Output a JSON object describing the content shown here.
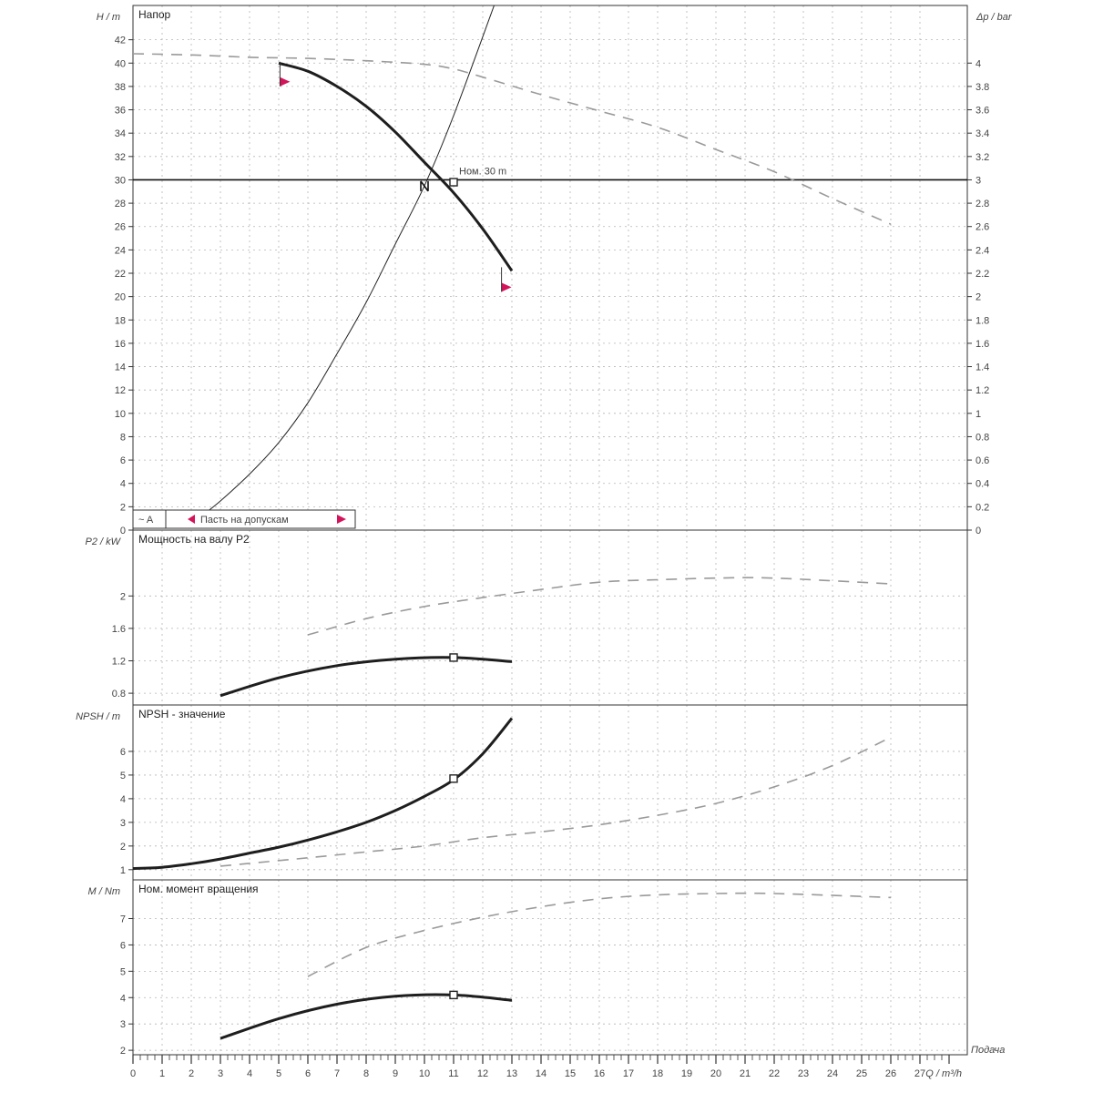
{
  "chart_data": {
    "type": "line",
    "x": {
      "label": "Q / m³/h",
      "corner_label": "Подача",
      "range": [
        0,
        28
      ],
      "tick_labels": [
        "0",
        "1",
        "2",
        "3",
        "4",
        "5",
        "6",
        "7",
        "8",
        "9",
        "10",
        "11",
        "12",
        "13",
        "14",
        "15",
        "16",
        "17",
        "18",
        "19",
        "20",
        "21",
        "22",
        "23",
        "24",
        "25",
        "26",
        "27"
      ]
    },
    "panels": [
      {
        "id": "head",
        "title": "Напор",
        "ylabel": "H / m",
        "ylim": [
          0,
          44
        ],
        "y_ticks": [
          0,
          2,
          4,
          6,
          8,
          10,
          12,
          14,
          16,
          18,
          20,
          22,
          24,
          26,
          28,
          30,
          32,
          34,
          36,
          38,
          40,
          42
        ],
        "secondary_axis": {
          "label": "Δp / bar",
          "ylim": [
            0,
            4.4
          ],
          "ticks": [
            "0",
            "0.2",
            "0.4",
            "0.6",
            "0.8",
            "1",
            "1.2",
            "1.4",
            "1.6",
            "1.8",
            "2",
            "2.2",
            "2.4",
            "2.6",
            "2.8",
            "3",
            "3.2",
            "3.4",
            "3.6",
            "3.8",
            "4"
          ]
        },
        "duty_line_y": 30,
        "duty_label": "Ном. 30 m",
        "series": [
          {
            "style": "solid-thick",
            "x": [
              5,
              6,
              7,
              8,
              9,
              10,
              11,
              12,
              13
            ],
            "y": [
              40,
              39.3,
              38,
              36.3,
              34.1,
              31.5,
              28.9,
              25.8,
              22.2
            ]
          },
          {
            "style": "dashed",
            "x": [
              0,
              2,
              4,
              6,
              8,
              10,
              11,
              12,
              14,
              16,
              18,
              20,
              22,
              24,
              26
            ],
            "y": [
              40.8,
              40.7,
              40.5,
              40.4,
              40.2,
              39.9,
              39.5,
              38.8,
              37.3,
              35.9,
              34.5,
              32.6,
              30.7,
              28.4,
              26.2
            ]
          },
          {
            "style": "system-curve",
            "x": [
              2.4,
              3,
              4,
              5,
              6,
              7,
              8,
              9,
              10,
              11,
              12.4
            ],
            "y": [
              1.3,
              2.5,
              4.8,
              7.5,
              10.9,
              15.1,
              19.5,
              24.5,
              29.5,
              35.5,
              45
            ]
          }
        ],
        "markers": [
          {
            "x": 10,
            "y": 29.5,
            "kind": "intersection"
          },
          {
            "x": 11,
            "y": 29.8,
            "kind": "duty-point"
          }
        ],
        "tolerance_flags": [
          {
            "x": 5.2,
            "y": 38.4
          },
          {
            "x": 12.8,
            "y": 20.8
          }
        ],
        "legend": {
          "placement": "bottom-left",
          "items": [
            "~ A",
            "Пасть на допускам"
          ]
        }
      },
      {
        "id": "power",
        "title": "Мощность на валу P2",
        "ylabel": "P2 / kW",
        "ylim": [
          0.7,
          2.7
        ],
        "y_ticks": [
          0.8,
          1.2,
          1.6,
          2
        ],
        "y_tick_labels": [
          "0.8",
          "1.2",
          "1.6",
          "2"
        ],
        "series": [
          {
            "style": "solid-thick",
            "x": [
              3,
              5,
              7,
              9,
              11,
              13
            ],
            "y": [
              0.77,
              0.99,
              1.14,
              1.22,
              1.24,
              1.19
            ]
          },
          {
            "style": "dashed",
            "x": [
              6,
              8,
              10,
              12,
              14,
              16,
              18,
              20,
              22,
              26
            ],
            "y": [
              1.52,
              1.72,
              1.87,
              1.98,
              2.08,
              2.17,
              2.2,
              2.22,
              2.22,
              2.15
            ]
          }
        ],
        "markers": [
          {
            "x": 11,
            "y": 1.24,
            "kind": "duty-point"
          }
        ]
      },
      {
        "id": "npsh",
        "title": "NPSH - значение",
        "ylabel": "NPSH / m",
        "ylim": [
          0.8,
          7.5
        ],
        "y_ticks": [
          1,
          2,
          3,
          4,
          5,
          6
        ],
        "y_tick_labels": [
          "1",
          "2",
          "3",
          "4",
          "5",
          "6"
        ],
        "series": [
          {
            "style": "solid-thick",
            "x": [
              0,
              1,
              2,
              3,
              4,
              5,
              6,
              7,
              8,
              9,
              10,
              11,
              12,
              13
            ],
            "y": [
              1.05,
              1.1,
              1.25,
              1.45,
              1.7,
              1.95,
              2.25,
              2.6,
              3.0,
              3.5,
              4.1,
              4.8,
              5.9,
              7.4
            ]
          },
          {
            "style": "dashed",
            "x": [
              3,
              6,
              8,
              10,
              12,
              14,
              16,
              18,
              20,
              22,
              24,
              26
            ],
            "y": [
              1.15,
              1.5,
              1.75,
              2.0,
              2.35,
              2.6,
              2.9,
              3.3,
              3.8,
              4.5,
              5.4,
              6.6
            ]
          }
        ],
        "markers": [
          {
            "x": 11,
            "y": 4.85,
            "kind": "duty-point"
          }
        ]
      },
      {
        "id": "torque",
        "title": "Ном. момент вращения",
        "ylabel": "M / Nm",
        "ylim": [
          1.9,
          8.4
        ],
        "y_ticks": [
          2,
          3,
          4,
          5,
          6,
          7
        ],
        "y_tick_labels": [
          "2",
          "3",
          "4",
          "5",
          "6",
          "7"
        ],
        "series": [
          {
            "style": "solid-thick",
            "x": [
              3,
              5,
              7,
              9,
              11,
              13
            ],
            "y": [
              2.45,
              3.2,
              3.75,
              4.05,
              4.1,
              3.9
            ]
          },
          {
            "style": "dashed",
            "x": [
              6,
              8,
              10,
              12,
              14,
              16,
              18,
              20,
              22,
              26
            ],
            "y": [
              4.8,
              5.9,
              6.55,
              7.05,
              7.45,
              7.75,
              7.9,
              7.95,
              7.95,
              7.8
            ]
          }
        ],
        "markers": [
          {
            "x": 11,
            "y": 4.1,
            "kind": "duty-point"
          }
        ]
      }
    ]
  }
}
